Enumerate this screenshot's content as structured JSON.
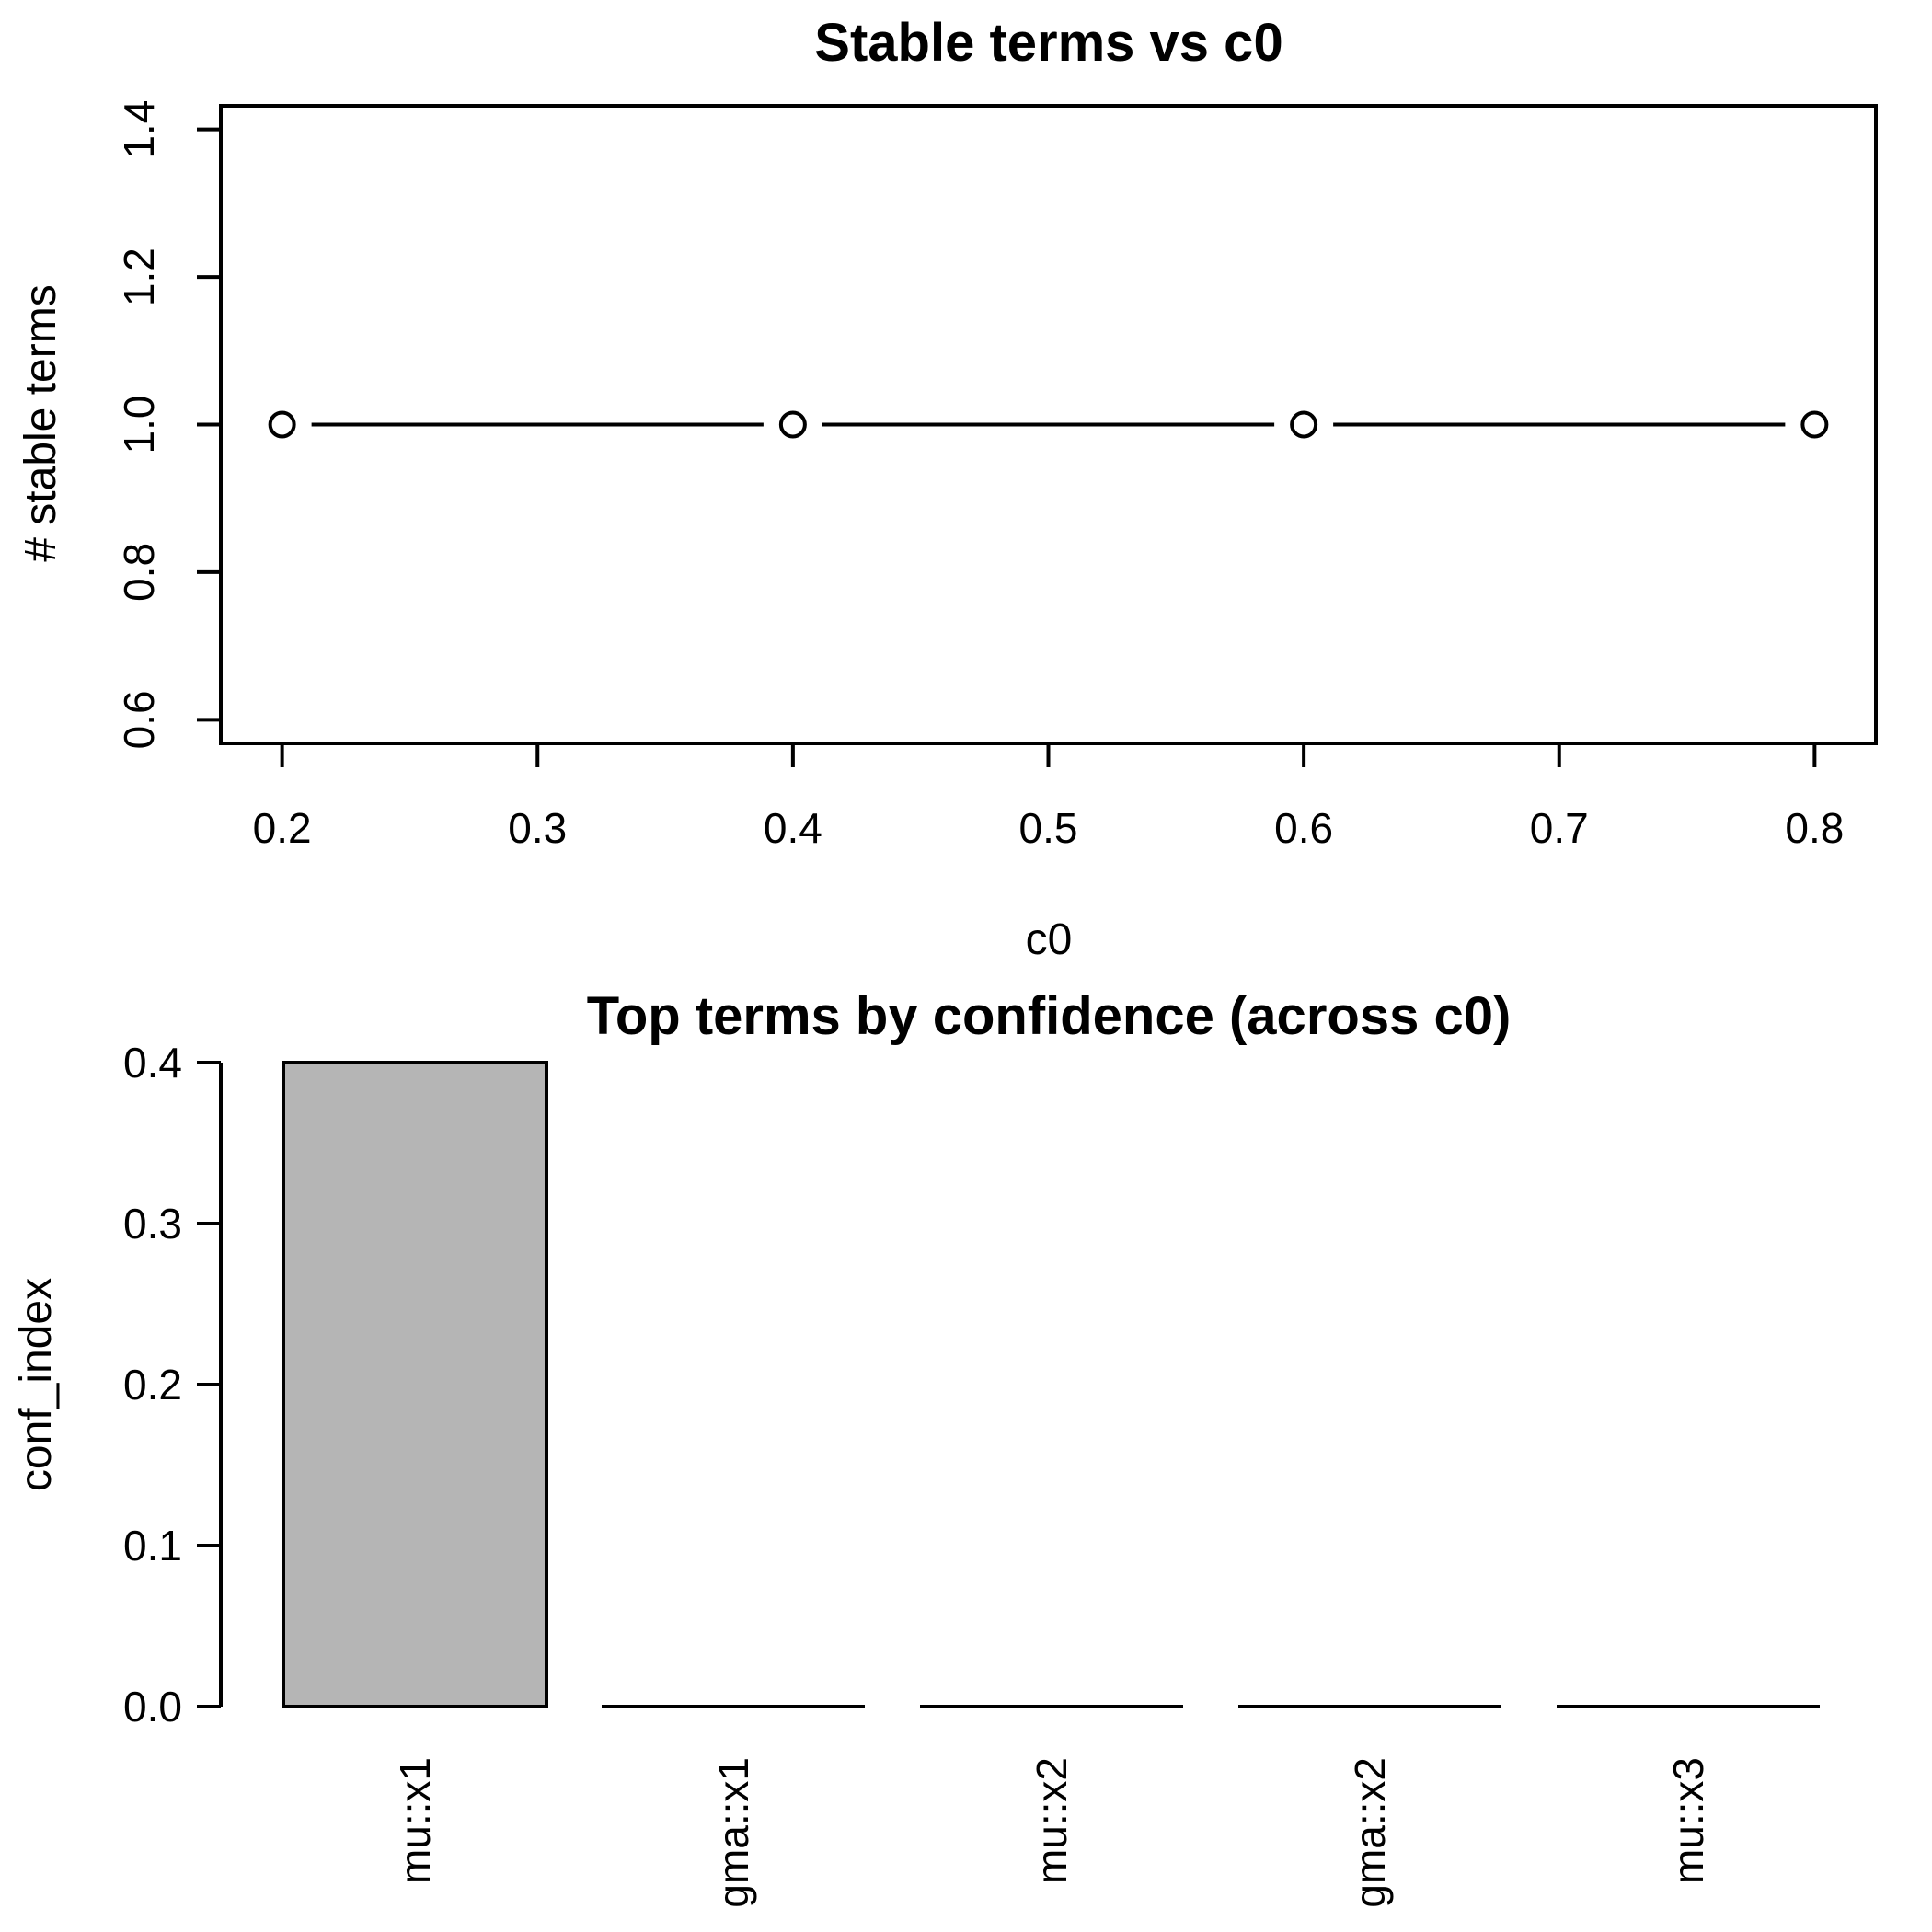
{
  "figure": {
    "background": "#ffffff",
    "foreground": "#000000"
  },
  "chart_data": [
    {
      "id": "stable-terms-vs-c0",
      "type": "line",
      "title": "Stable terms vs c0",
      "xlabel": "c0",
      "ylabel": "# stable terms",
      "x": [
        0.2,
        0.4,
        0.6,
        0.8
      ],
      "y": [
        1.0,
        1.0,
        1.0,
        1.0
      ],
      "marker": "open-circle",
      "line_style": "segments-with-gaps-around-markers",
      "x_tick_labels": [
        "0.2",
        "0.3",
        "0.4",
        "0.5",
        "0.6",
        "0.7",
        "0.8"
      ],
      "y_tick_labels": [
        "0.6",
        "0.8",
        "1.0",
        "1.2",
        "1.4"
      ],
      "xlim": [
        0.176,
        0.824
      ],
      "ylim": [
        0.568,
        1.432
      ],
      "grid": false,
      "legend": "none",
      "box": true,
      "y_tick_label_rotation_deg": 90
    },
    {
      "id": "top-terms-by-confidence",
      "type": "bar",
      "title": "Top terms by confidence (across c0)",
      "xlabel": "",
      "ylabel": "conf_index",
      "categories": [
        "mu::x1",
        "gma::x1",
        "mu::x2",
        "gma::x2",
        "mu::x3"
      ],
      "values": [
        0.4,
        0,
        0,
        0,
        0
      ],
      "y_tick_labels": [
        "0.0",
        "0.1",
        "0.2",
        "0.3",
        "0.4"
      ],
      "ylim": [
        0,
        0.4
      ],
      "grid": false,
      "legend": "none",
      "bar_fill": "#b5b5b5",
      "bar_stroke": "#000000",
      "category_label_rotation_deg": 90
    }
  ]
}
